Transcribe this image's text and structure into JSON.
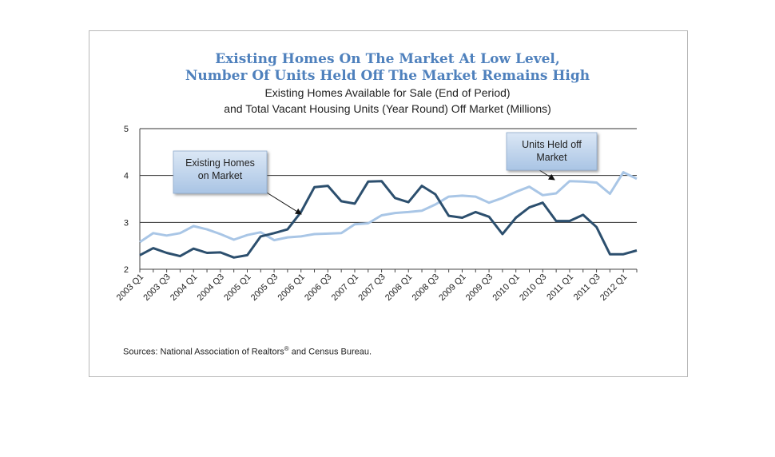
{
  "title_line1": "Existing Homes On The Market At Low Level,",
  "title_line2": "Number Of Units Held Off The Market Remains High",
  "subtitle_line1": "Existing Homes Available for Sale (End of Period)",
  "subtitle_line2": "and Total Vacant Housing Units (Year Round) Off Market (Millions)",
  "source_prefix": "Sources: National Association of Realtors",
  "source_sup": "®",
  "source_suffix": " and Census Bureau.",
  "colors": {
    "existing": "#2c4f6e",
    "held_off": "#a9c6e6",
    "title": "#4f81bd"
  },
  "chart_data": {
    "type": "line",
    "ylim": [
      2,
      5
    ],
    "yticks": [
      2,
      3,
      4,
      5
    ],
    "grid": true,
    "x": [
      "2003 Q1",
      "2003 Q2",
      "2003 Q3",
      "2003 Q4",
      "2004 Q1",
      "2004 Q2",
      "2004 Q3",
      "2004 Q4",
      "2005 Q1",
      "2005 Q2",
      "2005 Q3",
      "2005 Q4",
      "2006 Q1",
      "2006 Q2",
      "2006 Q3",
      "2006 Q4",
      "2007 Q1",
      "2007 Q2",
      "2007 Q3",
      "2007 Q4",
      "2008 Q1",
      "2008 Q2",
      "2008 Q3",
      "2008 Q4",
      "2009 Q1",
      "2009 Q2",
      "2009 Q3",
      "2009 Q4",
      "2010 Q1",
      "2010 Q2",
      "2010 Q3",
      "2010 Q4",
      "2011 Q1",
      "2011 Q2",
      "2011 Q3",
      "2011 Q4",
      "2012 Q1",
      "2012 Q2"
    ],
    "xtick_labels": [
      "2003 Q1",
      "2003 Q3",
      "2004 Q1",
      "2004 Q3",
      "2005 Q1",
      "2005 Q3",
      "2006 Q1",
      "2006 Q3",
      "2007 Q1",
      "2007 Q3",
      "2008 Q1",
      "2008 Q3",
      "2009 Q1",
      "2009 Q3",
      "2010 Q1",
      "2010 Q3",
      "2011 Q1",
      "2011 Q3",
      "2012 Q1"
    ],
    "series": [
      {
        "name": "Existing Homes on Market",
        "values": [
          2.3,
          2.45,
          2.35,
          2.28,
          2.44,
          2.35,
          2.36,
          2.25,
          2.3,
          2.7,
          2.77,
          2.85,
          3.22,
          3.75,
          3.78,
          3.45,
          3.4,
          3.87,
          3.88,
          3.52,
          3.43,
          3.78,
          3.6,
          3.14,
          3.1,
          3.22,
          3.12,
          2.75,
          3.1,
          3.32,
          3.42,
          3.03,
          3.03,
          3.16,
          2.9,
          2.32,
          2.32,
          2.4
        ]
      },
      {
        "name": "Units Held off Market",
        "values": [
          2.58,
          2.77,
          2.72,
          2.77,
          2.92,
          2.85,
          2.75,
          2.63,
          2.73,
          2.79,
          2.62,
          2.68,
          2.7,
          2.75,
          2.76,
          2.77,
          2.96,
          2.98,
          3.15,
          3.2,
          3.22,
          3.25,
          3.38,
          3.55,
          3.57,
          3.55,
          3.42,
          3.52,
          3.65,
          3.76,
          3.58,
          3.62,
          3.88,
          3.87,
          3.85,
          3.61,
          4.07,
          3.93
        ]
      }
    ],
    "annotations": [
      {
        "text": [
          "Existing Homes",
          "on Market"
        ],
        "series": 0
      },
      {
        "text": [
          "Units Held off",
          "Market"
        ],
        "series": 1
      }
    ]
  }
}
